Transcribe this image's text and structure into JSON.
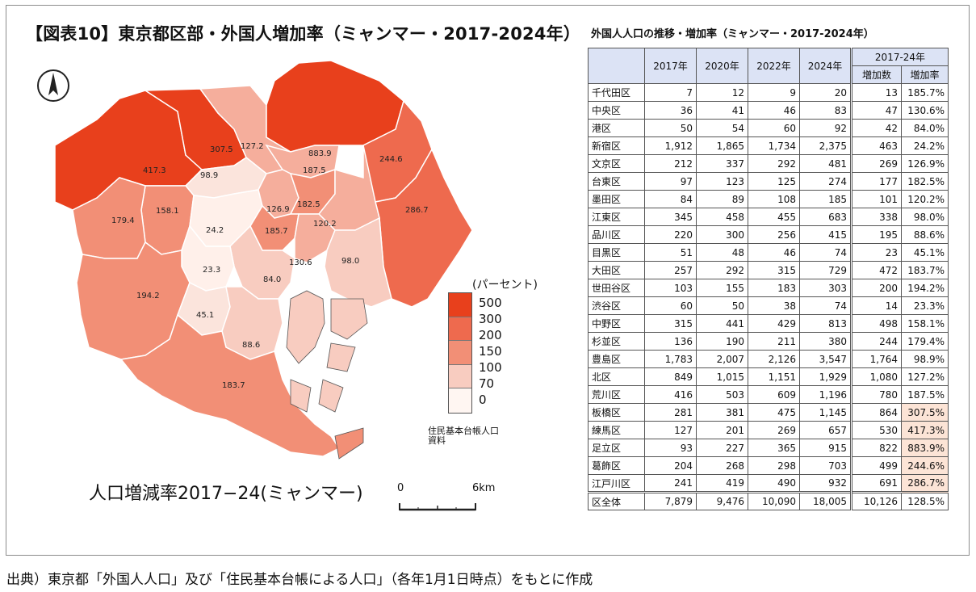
{
  "title": "【図表10】東京都区部・外国人増加率（ミャンマー・2017-2024年）",
  "table_title": "外国人人口の推移・増加率（ミャンマー・2017-2024年）",
  "legend": {
    "title": "(パーセント)",
    "labels": [
      "500",
      "300",
      "200",
      "150",
      "100",
      "70",
      "0"
    ],
    "colors": [
      "#e8401c",
      "#ee6a4e",
      "#f28f76",
      "#f5ae9c",
      "#f8ccc0",
      "#fbe4dc"
    ],
    "source": "住民基本台帳人口資料"
  },
  "map": {
    "caption": "人口増減率2017−24(ミャンマー)",
    "scale_start": "0",
    "scale_end": "6km",
    "labels": [
      "307.5",
      "127.2",
      "883.9",
      "244.6",
      "417.3",
      "98.9",
      "187.5",
      "179.4",
      "158.1",
      "126.9",
      "182.5",
      "286.7",
      "24.2",
      "185.7",
      "120.2",
      "130.6",
      "98.0",
      "23.3",
      "84.0",
      "194.2",
      "45.1",
      "88.6",
      "183.7"
    ]
  },
  "footer": "出典）東京都「外国人人口」及び「住民基本台帳による人口」（各年1月1日時点）をもとに作成",
  "chart_data": {
    "type": "table",
    "title": "外国人人口の推移・増加率（ミャンマー・2017-2024年）",
    "columns": [
      "2017年",
      "2020年",
      "2022年",
      "2024年",
      "増加数",
      "増加率"
    ],
    "group_header": "2017-24年",
    "rows": [
      {
        "ward": "千代田区",
        "y2017": "7",
        "y2020": "12",
        "y2022": "9",
        "y2024": "20",
        "increase": "13",
        "rate": "185.7%",
        "highlight": false
      },
      {
        "ward": "中央区",
        "y2017": "36",
        "y2020": "41",
        "y2022": "46",
        "y2024": "83",
        "increase": "47",
        "rate": "130.6%",
        "highlight": false
      },
      {
        "ward": "港区",
        "y2017": "50",
        "y2020": "54",
        "y2022": "60",
        "y2024": "92",
        "increase": "42",
        "rate": "84.0%",
        "highlight": false
      },
      {
        "ward": "新宿区",
        "y2017": "1,912",
        "y2020": "1,865",
        "y2022": "1,734",
        "y2024": "2,375",
        "increase": "463",
        "rate": "24.2%",
        "highlight": false
      },
      {
        "ward": "文京区",
        "y2017": "212",
        "y2020": "337",
        "y2022": "292",
        "y2024": "481",
        "increase": "269",
        "rate": "126.9%",
        "highlight": false
      },
      {
        "ward": "台東区",
        "y2017": "97",
        "y2020": "123",
        "y2022": "125",
        "y2024": "274",
        "increase": "177",
        "rate": "182.5%",
        "highlight": false
      },
      {
        "ward": "墨田区",
        "y2017": "84",
        "y2020": "89",
        "y2022": "108",
        "y2024": "185",
        "increase": "101",
        "rate": "120.2%",
        "highlight": false
      },
      {
        "ward": "江東区",
        "y2017": "345",
        "y2020": "458",
        "y2022": "455",
        "y2024": "683",
        "increase": "338",
        "rate": "98.0%",
        "highlight": false
      },
      {
        "ward": "品川区",
        "y2017": "220",
        "y2020": "300",
        "y2022": "256",
        "y2024": "415",
        "increase": "195",
        "rate": "88.6%",
        "highlight": false
      },
      {
        "ward": "目黒区",
        "y2017": "51",
        "y2020": "48",
        "y2022": "46",
        "y2024": "74",
        "increase": "23",
        "rate": "45.1%",
        "highlight": false
      },
      {
        "ward": "大田区",
        "y2017": "257",
        "y2020": "292",
        "y2022": "315",
        "y2024": "729",
        "increase": "472",
        "rate": "183.7%",
        "highlight": false
      },
      {
        "ward": "世田谷区",
        "y2017": "103",
        "y2020": "155",
        "y2022": "183",
        "y2024": "303",
        "increase": "200",
        "rate": "194.2%",
        "highlight": false
      },
      {
        "ward": "渋谷区",
        "y2017": "60",
        "y2020": "50",
        "y2022": "38",
        "y2024": "74",
        "increase": "14",
        "rate": "23.3%",
        "highlight": false
      },
      {
        "ward": "中野区",
        "y2017": "315",
        "y2020": "441",
        "y2022": "429",
        "y2024": "813",
        "increase": "498",
        "rate": "158.1%",
        "highlight": false
      },
      {
        "ward": "杉並区",
        "y2017": "136",
        "y2020": "190",
        "y2022": "211",
        "y2024": "380",
        "increase": "244",
        "rate": "179.4%",
        "highlight": false
      },
      {
        "ward": "豊島区",
        "y2017": "1,783",
        "y2020": "2,007",
        "y2022": "2,126",
        "y2024": "3,547",
        "increase": "1,764",
        "rate": "98.9%",
        "highlight": false
      },
      {
        "ward": "北区",
        "y2017": "849",
        "y2020": "1,015",
        "y2022": "1,151",
        "y2024": "1,929",
        "increase": "1,080",
        "rate": "127.2%",
        "highlight": false
      },
      {
        "ward": "荒川区",
        "y2017": "416",
        "y2020": "503",
        "y2022": "609",
        "y2024": "1,196",
        "increase": "780",
        "rate": "187.5%",
        "highlight": false
      },
      {
        "ward": "板橋区",
        "y2017": "281",
        "y2020": "381",
        "y2022": "475",
        "y2024": "1,145",
        "increase": "864",
        "rate": "307.5%",
        "highlight": true
      },
      {
        "ward": "練馬区",
        "y2017": "127",
        "y2020": "201",
        "y2022": "269",
        "y2024": "657",
        "increase": "530",
        "rate": "417.3%",
        "highlight": true
      },
      {
        "ward": "足立区",
        "y2017": "93",
        "y2020": "227",
        "y2022": "365",
        "y2024": "915",
        "increase": "822",
        "rate": "883.9%",
        "highlight": true
      },
      {
        "ward": "葛飾区",
        "y2017": "204",
        "y2020": "268",
        "y2022": "298",
        "y2024": "703",
        "increase": "499",
        "rate": "244.6%",
        "highlight": true
      },
      {
        "ward": "江戸川区",
        "y2017": "241",
        "y2020": "419",
        "y2022": "490",
        "y2024": "932",
        "increase": "691",
        "rate": "286.7%",
        "highlight": true
      }
    ],
    "total": {
      "ward": "区全体",
      "y2017": "7,879",
      "y2020": "9,476",
      "y2022": "10,090",
      "y2024": "18,005",
      "increase": "10,126",
      "rate": "128.5%"
    }
  }
}
